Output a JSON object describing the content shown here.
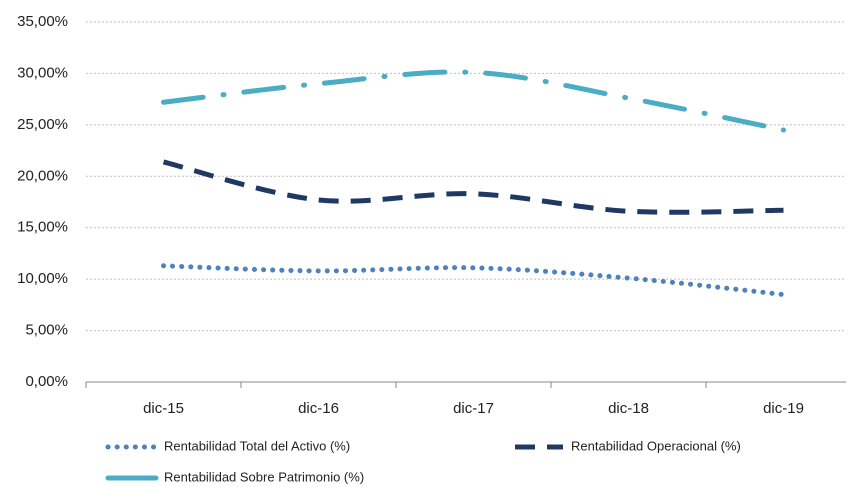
{
  "chart_data": {
    "type": "line",
    "categories": [
      "dic-15",
      "dic-16",
      "dic-17",
      "dic-18",
      "dic-19"
    ],
    "series": [
      {
        "name": "Rentabilidad Total del Activo (%)",
        "color": "#4f81bd",
        "style": "dotted",
        "values": [
          11.3,
          10.8,
          11.1,
          10.1,
          8.5
        ]
      },
      {
        "name": "Rentabilidad Operacional (%)",
        "color": "#1f3864",
        "style": "dashed",
        "values": [
          21.4,
          17.7,
          18.3,
          16.6,
          16.7
        ]
      },
      {
        "name": "Rentabilidad Sobre Patrimonio (%)",
        "color": "#4bacc6",
        "style": "dashdot",
        "values": [
          27.2,
          29.0,
          30.1,
          27.6,
          24.5
        ]
      }
    ],
    "ylim": [
      0,
      35
    ],
    "yticks": [
      {
        "value": 0,
        "label": "0,00%"
      },
      {
        "value": 5,
        "label": "5,00%"
      },
      {
        "value": 10,
        "label": "10,00%"
      },
      {
        "value": 15,
        "label": "15,00%"
      },
      {
        "value": 20,
        "label": "20,00%"
      },
      {
        "value": 25,
        "label": "25,00%"
      },
      {
        "value": 30,
        "label": "30,00%"
      },
      {
        "value": 35,
        "label": "35,00%"
      }
    ],
    "grid": true
  }
}
